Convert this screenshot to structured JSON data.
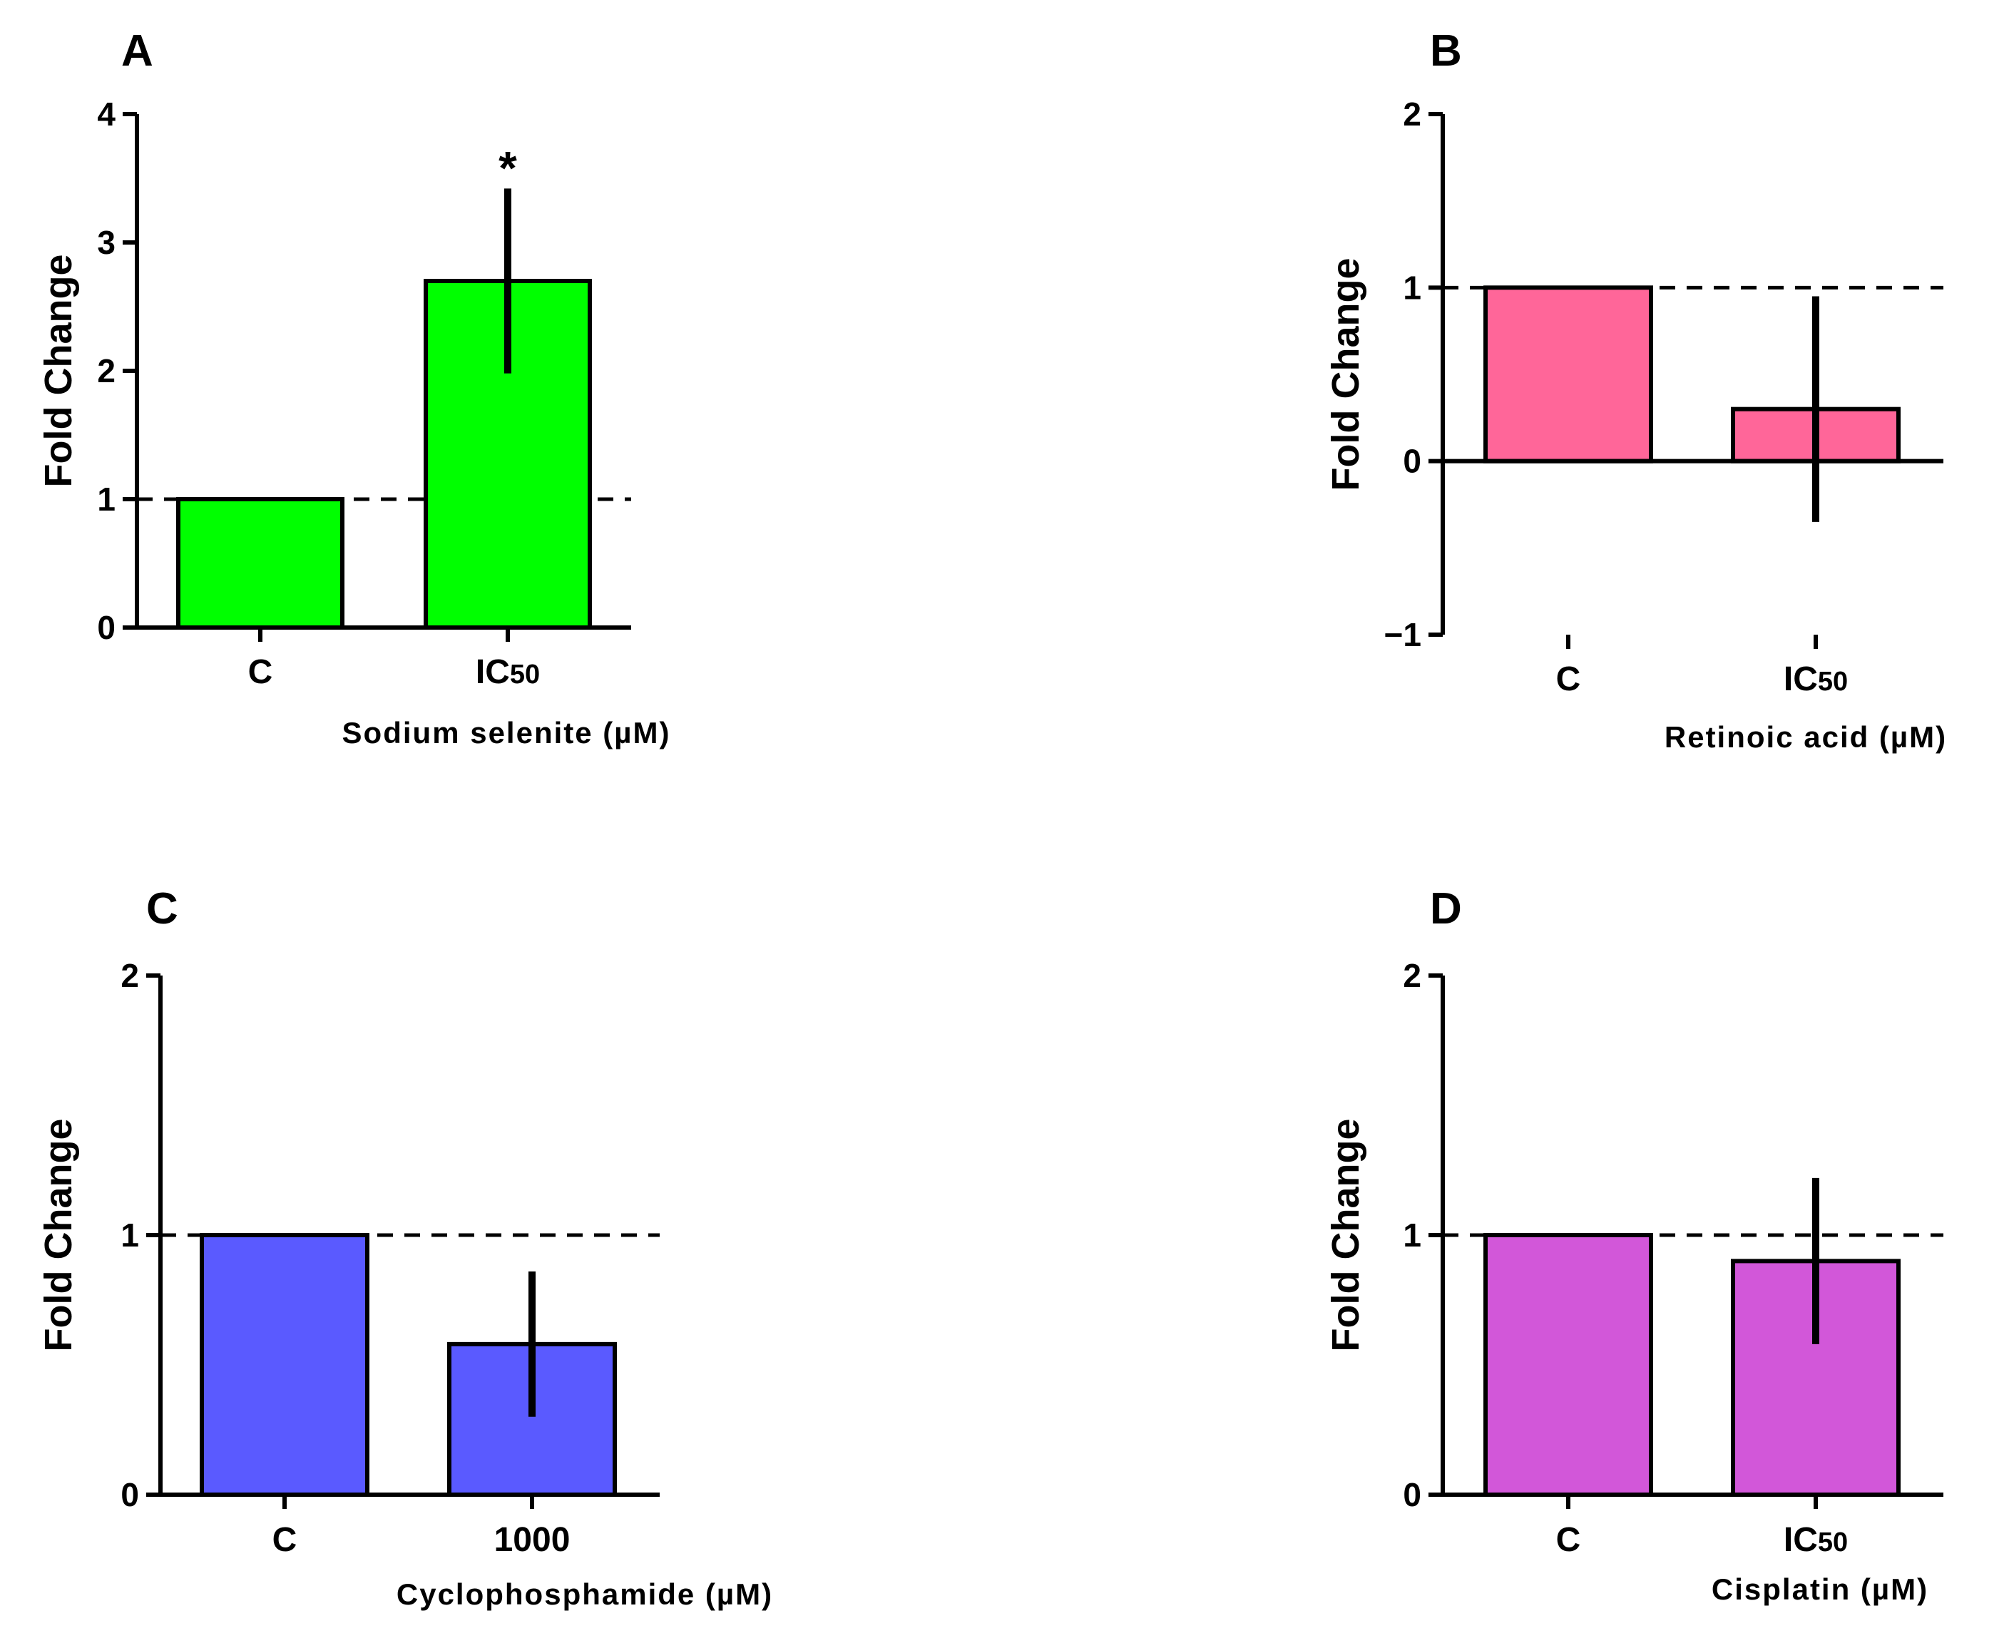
{
  "chart_data": [
    {
      "panel": "A",
      "type": "bar",
      "categories": [
        "C",
        "IC50"
      ],
      "values": [
        1.0,
        2.7
      ],
      "errors": [
        0,
        0.72
      ],
      "color": "#00ff00",
      "ylabel": "Fold Change",
      "xlabel": "Sodium selenite (µM)",
      "ylim": [
        0,
        4
      ],
      "yticks": [
        0,
        1,
        2,
        3,
        4
      ],
      "reference_line": 1,
      "annotations": [
        {
          "category": "IC50",
          "text": "*"
        }
      ]
    },
    {
      "panel": "B",
      "type": "bar",
      "categories": [
        "C",
        "IC50"
      ],
      "values": [
        1.0,
        0.3
      ],
      "errors": [
        0,
        0.65
      ],
      "color": "#ff6699",
      "ylabel": "Fold Change",
      "xlabel": "Retinoic acid (µM)",
      "ylim": [
        -1,
        2
      ],
      "yticks": [
        -1,
        0,
        1,
        2
      ],
      "reference_line": 1,
      "annotations": []
    },
    {
      "panel": "C",
      "type": "bar",
      "categories": [
        "C",
        "1000"
      ],
      "values": [
        1.0,
        0.58
      ],
      "errors": [
        0,
        0.28
      ],
      "color": "#5a5aff",
      "ylabel": "Fold Change",
      "xlabel": "Cyclophosphamide (µM)",
      "ylim": [
        0,
        2
      ],
      "yticks": [
        0,
        1,
        2
      ],
      "reference_line": 1,
      "annotations": []
    },
    {
      "panel": "D",
      "type": "bar",
      "categories": [
        "C",
        "IC50"
      ],
      "values": [
        1.0,
        0.9
      ],
      "errors": [
        0,
        0.32
      ],
      "color": "#d257d9",
      "ylabel": "Fold Change",
      "xlabel": "Cisplatin (µM)",
      "ylim": [
        0,
        2
      ],
      "yticks": [
        0,
        1,
        2
      ],
      "reference_line": 1,
      "annotations": []
    }
  ]
}
